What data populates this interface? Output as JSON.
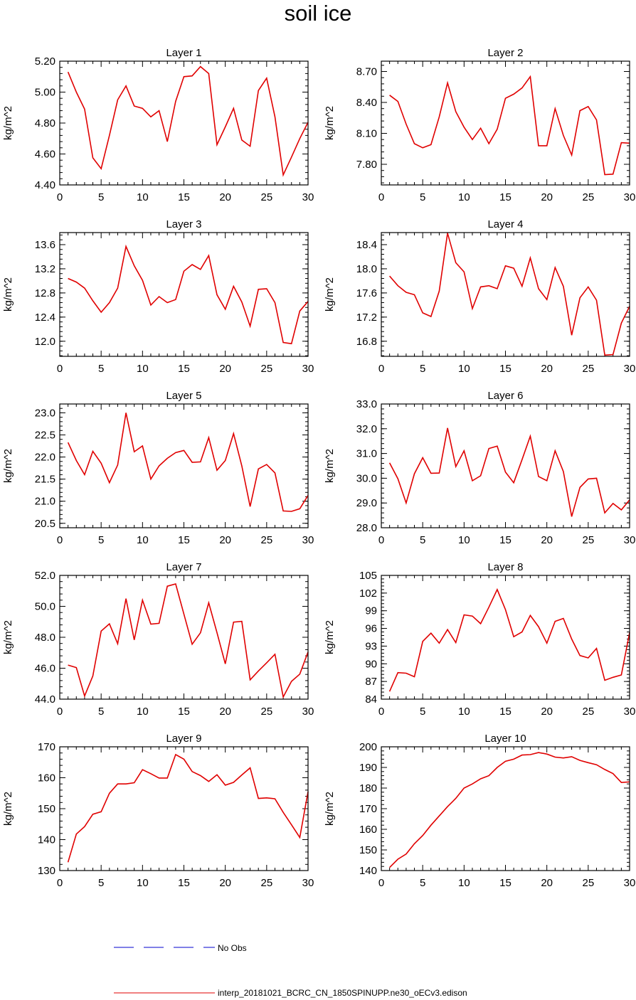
{
  "figure": {
    "title": "soil ice",
    "ylabel": "kg/m^2",
    "legend": [
      {
        "label": "No Obs",
        "color": "#0000cc",
        "style": "dashed"
      },
      {
        "label": "interp_20181021_BCRC_CN_1850SPINUPP.ne30_oECv3.edison",
        "color": "#e00000",
        "style": "solid"
      }
    ]
  },
  "chart_data": [
    {
      "type": "line",
      "title": "Layer 1",
      "ylabel": "kg/m^2",
      "xlim": [
        0,
        30
      ],
      "ylim": [
        4.4,
        5.2
      ],
      "xticks": [
        0,
        5,
        10,
        15,
        20,
        25,
        30
      ],
      "yticks": [
        4.4,
        4.6,
        4.8,
        5.0,
        5.2
      ],
      "ytick_labels": [
        "4.40",
        "4.60",
        "4.80",
        "5.00",
        "5.20"
      ],
      "series": [
        {
          "color": "#e00000",
          "x": [
            1,
            2,
            3,
            4,
            5,
            6,
            7,
            8,
            9,
            10,
            11,
            12,
            13,
            14,
            15,
            16,
            17,
            18,
            19,
            20,
            21,
            22,
            23,
            24,
            25,
            26,
            27,
            28,
            29,
            30
          ],
          "y": [
            5.13,
            5.0,
            4.89,
            4.575,
            4.505,
            4.72,
            4.95,
            5.04,
            4.91,
            4.895,
            4.84,
            4.88,
            4.68,
            4.94,
            5.1,
            5.105,
            5.165,
            5.12,
            4.66,
            4.775,
            4.895,
            4.69,
            4.65,
            5.01,
            5.09,
            4.84,
            4.465,
            4.58,
            4.7,
            4.805
          ]
        }
      ]
    },
    {
      "type": "line",
      "title": "Layer 2",
      "ylabel": "kg/m^2",
      "xlim": [
        0,
        30
      ],
      "ylim": [
        7.6,
        8.8
      ],
      "xticks": [
        0,
        5,
        10,
        15,
        20,
        25,
        30
      ],
      "yticks": [
        7.8,
        8.1,
        8.4,
        8.7
      ],
      "ytick_labels": [
        "7.80",
        "8.10",
        "8.40",
        "8.70"
      ],
      "series": [
        {
          "color": "#e00000",
          "x": [
            1,
            2,
            3,
            4,
            5,
            6,
            7,
            8,
            9,
            10,
            11,
            12,
            13,
            14,
            15,
            16,
            17,
            18,
            19,
            20,
            21,
            22,
            23,
            24,
            25,
            26,
            27,
            28,
            29,
            30
          ],
          "y": [
            8.47,
            8.41,
            8.19,
            8.0,
            7.96,
            7.99,
            8.26,
            8.59,
            8.31,
            8.16,
            8.04,
            8.15,
            8.0,
            8.14,
            8.44,
            8.48,
            8.54,
            8.65,
            7.98,
            7.98,
            8.34,
            8.08,
            7.89,
            8.32,
            8.36,
            8.23,
            7.7,
            7.705,
            8.01,
            8.005
          ]
        }
      ]
    },
    {
      "type": "line",
      "title": "Layer 3",
      "ylabel": "kg/m^2",
      "xlim": [
        0,
        30
      ],
      "ylim": [
        11.75,
        13.8
      ],
      "xticks": [
        0,
        5,
        10,
        15,
        20,
        25,
        30
      ],
      "yticks": [
        12.0,
        12.4,
        12.8,
        13.2,
        13.6
      ],
      "ytick_labels": [
        "12.0",
        "12.4",
        "12.8",
        "13.2",
        "13.6"
      ],
      "series": [
        {
          "color": "#e00000",
          "x": [
            1,
            2,
            3,
            4,
            5,
            6,
            7,
            8,
            9,
            10,
            11,
            12,
            13,
            14,
            15,
            16,
            17,
            18,
            19,
            20,
            21,
            22,
            23,
            24,
            25,
            26,
            27,
            28,
            29,
            30
          ],
          "y": [
            13.04,
            12.98,
            12.88,
            12.67,
            12.48,
            12.64,
            12.88,
            13.57,
            13.25,
            13.01,
            12.6,
            12.74,
            12.64,
            12.69,
            13.16,
            13.27,
            13.19,
            13.42,
            12.77,
            12.53,
            12.91,
            12.65,
            12.25,
            12.86,
            12.87,
            12.64,
            11.98,
            11.96,
            12.5,
            12.66
          ]
        }
      ]
    },
    {
      "type": "line",
      "title": "Layer 4",
      "ylabel": "kg/m^2",
      "xlim": [
        0,
        30
      ],
      "ylim": [
        16.55,
        18.6
      ],
      "xticks": [
        0,
        5,
        10,
        15,
        20,
        25,
        30
      ],
      "yticks": [
        16.8,
        17.2,
        17.6,
        18.0,
        18.4
      ],
      "ytick_labels": [
        "16.8",
        "17.2",
        "17.6",
        "18.0",
        "18.4"
      ],
      "series": [
        {
          "color": "#e00000",
          "x": [
            1,
            2,
            3,
            4,
            5,
            6,
            7,
            8,
            9,
            10,
            11,
            12,
            13,
            14,
            15,
            16,
            17,
            18,
            19,
            20,
            21,
            22,
            23,
            24,
            25,
            26,
            27,
            28,
            29,
            30
          ],
          "y": [
            17.88,
            17.72,
            17.61,
            17.57,
            17.27,
            17.21,
            17.63,
            18.59,
            18.1,
            17.95,
            17.34,
            17.7,
            17.72,
            17.67,
            18.05,
            18.01,
            17.71,
            18.18,
            17.67,
            17.49,
            18.02,
            17.71,
            16.9,
            17.52,
            17.7,
            17.48,
            16.57,
            16.58,
            17.1,
            17.38
          ]
        }
      ]
    },
    {
      "type": "line",
      "title": "Layer 5",
      "ylabel": "kg/m^2",
      "xlim": [
        0,
        30
      ],
      "ylim": [
        20.4,
        23.2
      ],
      "xticks": [
        0,
        5,
        10,
        15,
        20,
        25,
        30
      ],
      "yticks": [
        20.5,
        21.0,
        21.5,
        22.0,
        22.5,
        23.0
      ],
      "ytick_labels": [
        "20.5",
        "21.0",
        "21.5",
        "22.0",
        "22.5",
        "23.0"
      ],
      "series": [
        {
          "color": "#e00000",
          "x": [
            1,
            2,
            3,
            4,
            5,
            6,
            7,
            8,
            9,
            10,
            11,
            12,
            13,
            14,
            15,
            16,
            17,
            18,
            19,
            20,
            21,
            22,
            23,
            24,
            25,
            26,
            27,
            28,
            29,
            30
          ],
          "y": [
            22.33,
            21.92,
            21.6,
            22.13,
            21.86,
            21.42,
            21.82,
            23.0,
            22.12,
            22.25,
            21.5,
            21.8,
            21.97,
            22.1,
            22.15,
            21.88,
            21.89,
            22.44,
            21.7,
            21.92,
            22.53,
            21.8,
            20.88,
            21.73,
            21.83,
            21.64,
            20.78,
            20.77,
            20.83,
            21.13
          ]
        }
      ]
    },
    {
      "type": "line",
      "title": "Layer 6",
      "ylabel": "kg/m^2",
      "xlim": [
        0,
        30
      ],
      "ylim": [
        28.0,
        33.0
      ],
      "xticks": [
        0,
        5,
        10,
        15,
        20,
        25,
        30
      ],
      "yticks": [
        28.0,
        29.0,
        30.0,
        31.0,
        32.0,
        33.0
      ],
      "ytick_labels": [
        "28.0",
        "29.0",
        "30.0",
        "31.0",
        "32.0",
        "33.0"
      ],
      "series": [
        {
          "color": "#e00000",
          "x": [
            1,
            2,
            3,
            4,
            5,
            6,
            7,
            8,
            9,
            10,
            11,
            12,
            13,
            14,
            15,
            16,
            17,
            18,
            19,
            20,
            21,
            22,
            23,
            24,
            25,
            26,
            27,
            28,
            29,
            30
          ],
          "y": [
            30.62,
            29.98,
            29.0,
            30.18,
            30.83,
            30.2,
            30.21,
            32.03,
            30.47,
            31.11,
            29.9,
            30.1,
            31.2,
            31.3,
            30.25,
            29.82,
            30.75,
            31.7,
            30.07,
            29.9,
            31.11,
            30.27,
            28.45,
            29.63,
            29.97,
            30.0,
            28.6,
            28.98,
            28.72,
            29.13
          ]
        }
      ]
    },
    {
      "type": "line",
      "title": "Layer 7",
      "ylabel": "kg/m^2",
      "xlim": [
        0,
        30
      ],
      "ylim": [
        44.0,
        52.0
      ],
      "xticks": [
        0,
        5,
        10,
        15,
        20,
        25,
        30
      ],
      "yticks": [
        44.0,
        46.0,
        48.0,
        50.0,
        52.0
      ],
      "ytick_labels": [
        "44.0",
        "46.0",
        "48.0",
        "50.0",
        "52.0"
      ],
      "series": [
        {
          "color": "#e00000",
          "x": [
            1,
            2,
            3,
            4,
            5,
            6,
            7,
            8,
            9,
            10,
            11,
            12,
            13,
            14,
            15,
            16,
            17,
            18,
            19,
            20,
            21,
            22,
            23,
            24,
            25,
            26,
            27,
            28,
            29,
            30
          ],
          "y": [
            46.2,
            46.04,
            44.2,
            45.5,
            48.4,
            48.87,
            47.58,
            50.5,
            47.83,
            50.4,
            48.85,
            48.9,
            51.3,
            51.45,
            49.5,
            47.55,
            48.29,
            50.23,
            48.3,
            46.28,
            48.98,
            49.03,
            45.25,
            45.82,
            46.35,
            46.9,
            44.14,
            45.15,
            45.62,
            47.05
          ]
        }
      ]
    },
    {
      "type": "line",
      "title": "Layer 8",
      "ylabel": "kg/m^2",
      "xlim": [
        0,
        30
      ],
      "ylim": [
        84.0,
        105.0
      ],
      "xticks": [
        0,
        5,
        10,
        15,
        20,
        25,
        30
      ],
      "yticks": [
        84,
        87,
        90,
        93,
        96,
        99,
        102,
        105
      ],
      "ytick_labels": [
        "84",
        "87",
        "90",
        "93",
        "96",
        "99",
        "102",
        "105"
      ],
      "series": [
        {
          "color": "#e00000",
          "x": [
            1,
            2,
            3,
            4,
            5,
            6,
            7,
            8,
            9,
            10,
            11,
            12,
            13,
            14,
            15,
            16,
            17,
            18,
            19,
            20,
            21,
            22,
            23,
            24,
            25,
            26,
            27,
            28,
            29,
            30
          ],
          "y": [
            85.3,
            88.5,
            88.4,
            87.8,
            93.8,
            95.2,
            93.5,
            95.8,
            93.6,
            98.3,
            98.1,
            96.8,
            99.6,
            102.6,
            99.2,
            94.6,
            95.4,
            98.2,
            96.3,
            93.5,
            97.2,
            97.7,
            94.2,
            91.4,
            91.0,
            92.6,
            87.2,
            87.7,
            88.1,
            95.3
          ]
        }
      ]
    },
    {
      "type": "line",
      "title": "Layer 9",
      "ylabel": "kg/m^2",
      "xlim": [
        0,
        30
      ],
      "ylim": [
        130.0,
        170.0
      ],
      "xticks": [
        0,
        5,
        10,
        15,
        20,
        25,
        30
      ],
      "yticks": [
        130,
        140,
        150,
        160,
        170
      ],
      "ytick_labels": [
        "130",
        "140",
        "150",
        "160",
        "170"
      ],
      "series": [
        {
          "color": "#e00000",
          "x": [
            1,
            2,
            3,
            4,
            5,
            6,
            7,
            8,
            9,
            10,
            11,
            12,
            13,
            14,
            15,
            16,
            17,
            18,
            19,
            20,
            21,
            22,
            23,
            24,
            25,
            26,
            27,
            28,
            29,
            30
          ],
          "y": [
            132.7,
            141.8,
            144.2,
            148.2,
            149.0,
            155.0,
            158.0,
            158.0,
            158.4,
            162.6,
            161.3,
            159.9,
            159.9,
            167.5,
            166.0,
            162.0,
            160.7,
            158.8,
            161.0,
            157.6,
            158.5,
            160.9,
            163.2,
            153.3,
            153.5,
            153.2,
            148.8,
            144.8,
            140.7,
            155.5
          ]
        }
      ]
    },
    {
      "type": "line",
      "title": "Layer 10",
      "ylabel": "kg/m^2",
      "xlim": [
        0,
        30
      ],
      "ylim": [
        140.0,
        200.0
      ],
      "xticks": [
        0,
        5,
        10,
        15,
        20,
        25,
        30
      ],
      "yticks": [
        140,
        150,
        160,
        170,
        180,
        190,
        200
      ],
      "ytick_labels": [
        "140",
        "150",
        "160",
        "170",
        "180",
        "190",
        "200"
      ],
      "series": [
        {
          "color": "#e00000",
          "x": [
            1,
            2,
            3,
            4,
            5,
            6,
            7,
            8,
            9,
            10,
            11,
            12,
            13,
            14,
            15,
            16,
            17,
            18,
            19,
            20,
            21,
            22,
            23,
            24,
            25,
            26,
            27,
            28,
            29,
            30
          ],
          "y": [
            141.5,
            145.5,
            148.0,
            153.0,
            157.0,
            162.0,
            166.5,
            171.0,
            175.0,
            180.0,
            182.0,
            184.5,
            186.0,
            190.0,
            193.0,
            194.0,
            196.0,
            196.2,
            197.2,
            196.5,
            195.0,
            194.6,
            195.2,
            193.4,
            192.3,
            191.3,
            189.0,
            187.0,
            182.7,
            183.0
          ]
        }
      ]
    }
  ]
}
